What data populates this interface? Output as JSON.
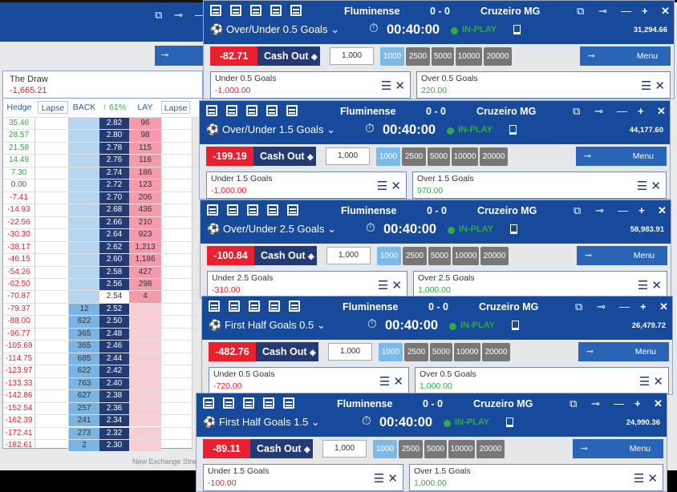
{
  "background_window": {
    "menu_pin": "⊸",
    "draw": {
      "name": "The Draw",
      "value": "-1,665.21"
    },
    "headers": {
      "hedge": "Hedge",
      "lapse1": "Lapse",
      "back": "BACK",
      "pct": "↑ 61%",
      "lay": "LAY",
      "lapse2": "Lapse"
    },
    "footer": "New Exchange Strea",
    "ladder": [
      [
        "35.46",
        "",
        "2.82",
        "96"
      ],
      [
        "28.57",
        "",
        "2.80",
        "98"
      ],
      [
        "21.58",
        "",
        "2.78",
        "115"
      ],
      [
        "14.49",
        "",
        "2.76",
        "116"
      ],
      [
        "7.30",
        "",
        "2.74",
        "186"
      ],
      [
        "0.00",
        "",
        "2.72",
        "123"
      ],
      [
        "-7.41",
        "",
        "2.70",
        "206"
      ],
      [
        "-14.93",
        "",
        "2.68",
        "436"
      ],
      [
        "-22.56",
        "",
        "2.66",
        "210"
      ],
      [
        "-30.30",
        "",
        "2.64",
        "923"
      ],
      [
        "-38.17",
        "",
        "2.62",
        "1,213"
      ],
      [
        "-46.15",
        "",
        "2.60",
        "1,186"
      ],
      [
        "-54.26",
        "",
        "2.58",
        "427"
      ],
      [
        "-62.50",
        "",
        "2.56",
        "298"
      ],
      [
        "-70.87",
        "",
        "2.54",
        "4"
      ],
      [
        "-79.37",
        "12",
        "2.52",
        ""
      ],
      [
        "-88.00",
        "622",
        "2.50",
        ""
      ],
      [
        "-96.77",
        "365",
        "2.48",
        ""
      ],
      [
        "-105.69",
        "365",
        "2.46",
        ""
      ],
      [
        "-114.75",
        "685",
        "2.44",
        ""
      ],
      [
        "-123.97",
        "622",
        "2.42",
        ""
      ],
      [
        "-133.33",
        "763",
        "2.40",
        ""
      ],
      [
        "-142.86",
        "627",
        "2.38",
        ""
      ],
      [
        "-152.54",
        "257",
        "2.36",
        ""
      ],
      [
        "-162.39",
        "241",
        "2.34",
        ""
      ],
      [
        "-172.41",
        "273",
        "2.32",
        ""
      ],
      [
        "-182.61",
        "2",
        "2.30",
        ""
      ]
    ]
  },
  "common": {
    "home": "Fluminense",
    "score": "0 - 0",
    "away": "Cruzeiro MG",
    "time": "00:40:00",
    "status": "IN-PLAY",
    "cashout_label": "Cash Out",
    "stake": "1,000",
    "stakes": [
      "1000",
      "2500",
      "5000",
      "10000",
      "20000"
    ],
    "selected_stake": "1000",
    "menu": "Menu",
    "pin": "⊸"
  },
  "colors": {
    "header": "#174a9a",
    "cashout_red": "#e8202f",
    "navy": "#243a72",
    "back": "#b5d6ee",
    "lay": "#f49aab",
    "inplay": "#33a844"
  },
  "panels": [
    {
      "market": "Over/Under 0.5 Goals",
      "balance": "31,294.66",
      "cashout": "-82.71",
      "runners": [
        {
          "name": "Under 0.5 Goals",
          "pl": "-1,000.00",
          "sign": "neg"
        },
        {
          "name": "Over 0.5 Goals",
          "pl": "220.00",
          "sign": "pos"
        }
      ]
    },
    {
      "market": "Over/Under 1.5 Goals",
      "balance": "44,177.60",
      "cashout": "-199.19",
      "runners": [
        {
          "name": "Under 1.5 Goals",
          "pl": "-1,000.00",
          "sign": "neg"
        },
        {
          "name": "Over 1.5 Goals",
          "pl": "970.00",
          "sign": "pos"
        }
      ]
    },
    {
      "market": "Over/Under 2.5 Goals",
      "balance": "58,983.91",
      "cashout": "-100.84",
      "runners": [
        {
          "name": "Under 2.5 Goals",
          "pl": "-310.00",
          "sign": "neg"
        },
        {
          "name": "Over 2.5 Goals",
          "pl": "1,000.00",
          "sign": "pos"
        }
      ]
    },
    {
      "market": "First Half Goals 0.5",
      "balance": "26,479.72",
      "cashout": "-482.76",
      "runners": [
        {
          "name": "Under 0.5 Goals",
          "pl": "-720.00",
          "sign": "neg"
        },
        {
          "name": "Over 0.5 Goals",
          "pl": "1,000.00",
          "sign": "pos"
        }
      ]
    },
    {
      "market": "First Half Goals 1.5",
      "balance": "24,990.36",
      "cashout": "-89.11",
      "runners": [
        {
          "name": "Under 1.5 Goals",
          "pl": "-100.00",
          "sign": "neg"
        },
        {
          "name": "Over 1.5 Goals",
          "pl": "1,000.00",
          "sign": "pos"
        }
      ]
    }
  ]
}
